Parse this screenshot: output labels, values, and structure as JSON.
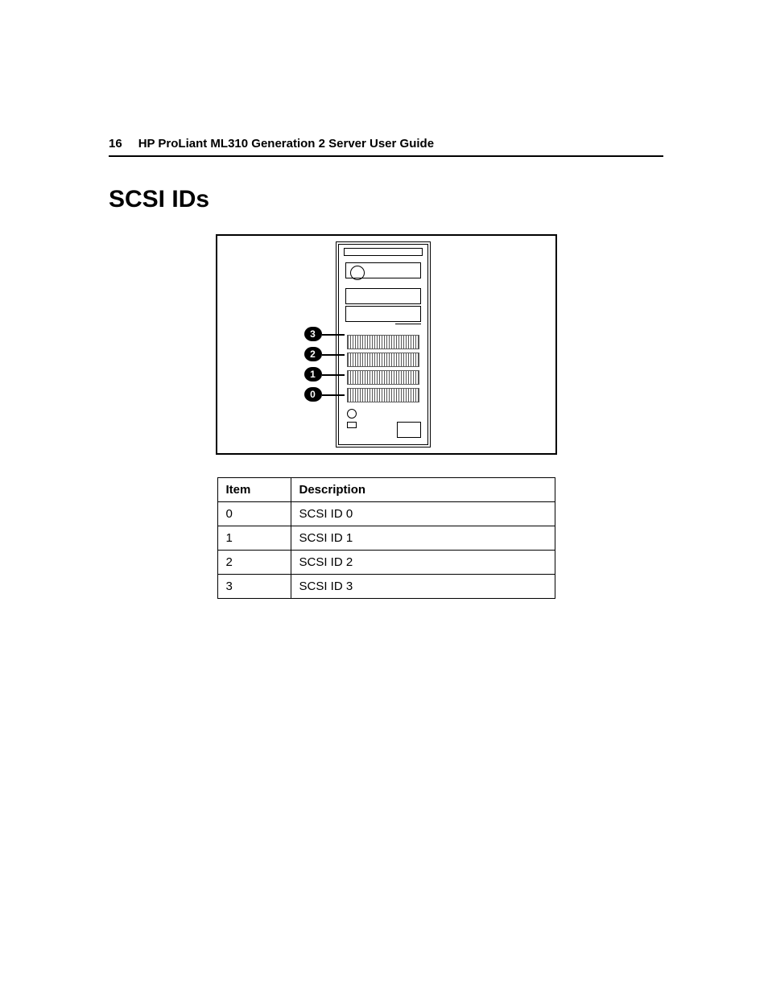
{
  "header": {
    "page_number": "16",
    "doc_title": "HP ProLiant ML310 Generation 2 Server User Guide"
  },
  "section": {
    "title": "SCSI IDs"
  },
  "figure": {
    "type": "diagram",
    "callouts": [
      {
        "label": "3"
      },
      {
        "label": "2"
      },
      {
        "label": "1"
      },
      {
        "label": "0"
      }
    ],
    "border_color": "#000000",
    "background_color": "#ffffff"
  },
  "table": {
    "columns": [
      "Item",
      "Description"
    ],
    "rows": [
      [
        "0",
        "SCSI ID 0"
      ],
      [
        "1",
        "SCSI ID 1"
      ],
      [
        "2",
        "SCSI ID 2"
      ],
      [
        "3",
        "SCSI ID 3"
      ]
    ],
    "border_color": "#000000",
    "header_font_weight": "bold",
    "font_size_pt": 11
  }
}
